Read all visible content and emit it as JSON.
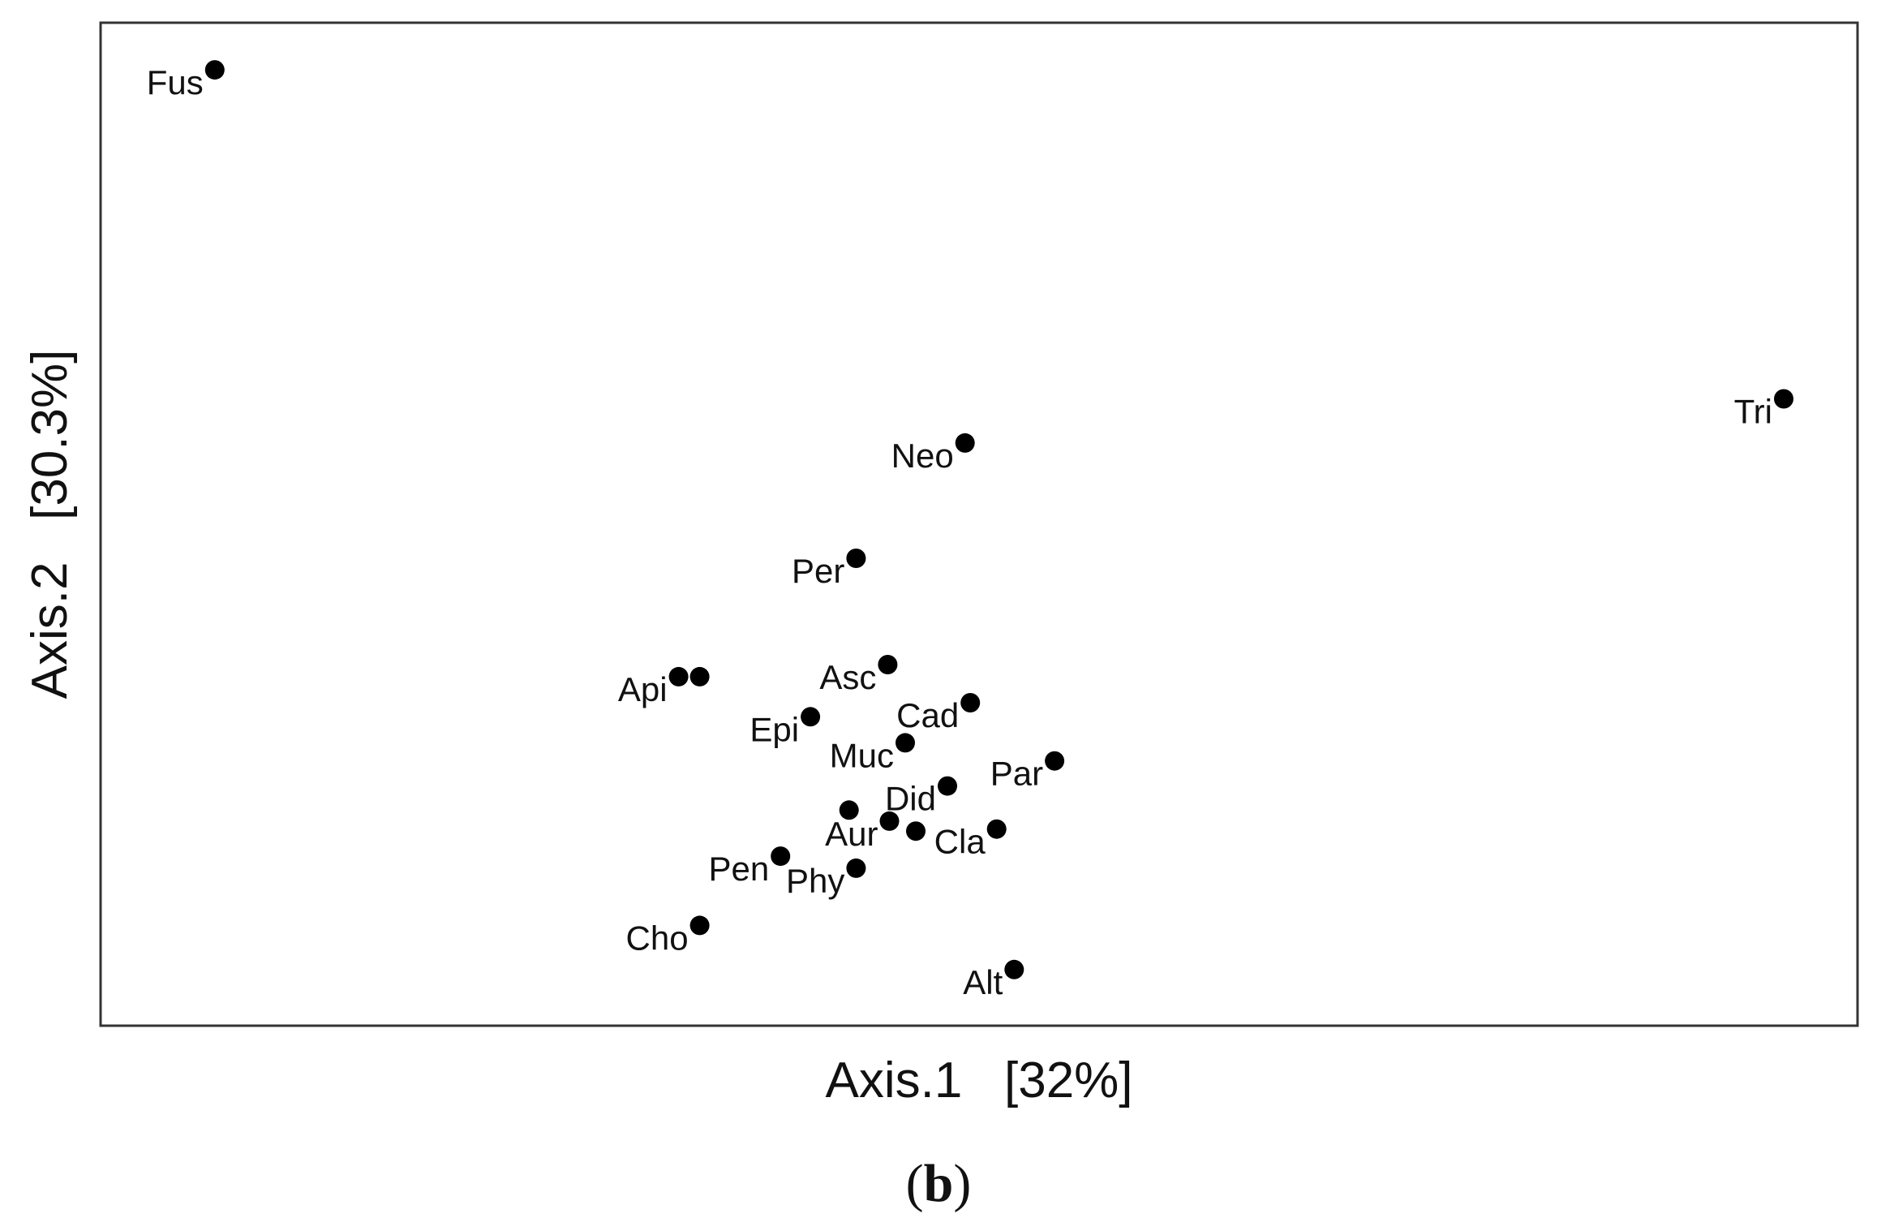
{
  "chart_data": {
    "type": "scatter",
    "xlabel": "Axis.1   [32%]",
    "ylabel": "Axis.2   [30.3%]",
    "panel_label": {
      "open": "(",
      "letter": "b",
      "close": ")"
    },
    "axes_ticks_shown": false,
    "grid": false,
    "xlim": [
      0,
      100
    ],
    "ylim": [
      0,
      100
    ],
    "points": [
      {
        "label": "Fus",
        "x": 6.5,
        "y": 95.3
      },
      {
        "label": "Tri",
        "x": 95.8,
        "y": 62.5
      },
      {
        "label": "Neo",
        "x": 49.2,
        "y": 58.1
      },
      {
        "label": "Per",
        "x": 43.0,
        "y": 46.6
      },
      {
        "label": "Asc",
        "x": 44.8,
        "y": 36.0
      },
      {
        "label": "Api",
        "x": 32.9,
        "y": 34.8
      },
      {
        "label": "",
        "x": 34.1,
        "y": 34.8
      },
      {
        "label": "Cad",
        "x": 49.5,
        "y": 32.2
      },
      {
        "label": "Epi",
        "x": 40.4,
        "y": 30.8
      },
      {
        "label": "Muc",
        "x": 45.8,
        "y": 28.2
      },
      {
        "label": "Par",
        "x": 54.3,
        "y": 26.4
      },
      {
        "label": "Did",
        "x": 48.2,
        "y": 23.9
      },
      {
        "label": "",
        "x": 42.6,
        "y": 21.5
      },
      {
        "label": "Aur",
        "x": 44.9,
        "y": 20.4
      },
      {
        "label": "",
        "x": 46.4,
        "y": 19.4
      },
      {
        "label": "Cla",
        "x": 51.0,
        "y": 19.6
      },
      {
        "label": "Pen",
        "x": 38.7,
        "y": 16.9
      },
      {
        "label": "Phy",
        "x": 43.0,
        "y": 15.7
      },
      {
        "label": "Cho",
        "x": 34.1,
        "y": 10.0
      },
      {
        "label": "Alt",
        "x": 52.0,
        "y": 5.6
      }
    ]
  }
}
